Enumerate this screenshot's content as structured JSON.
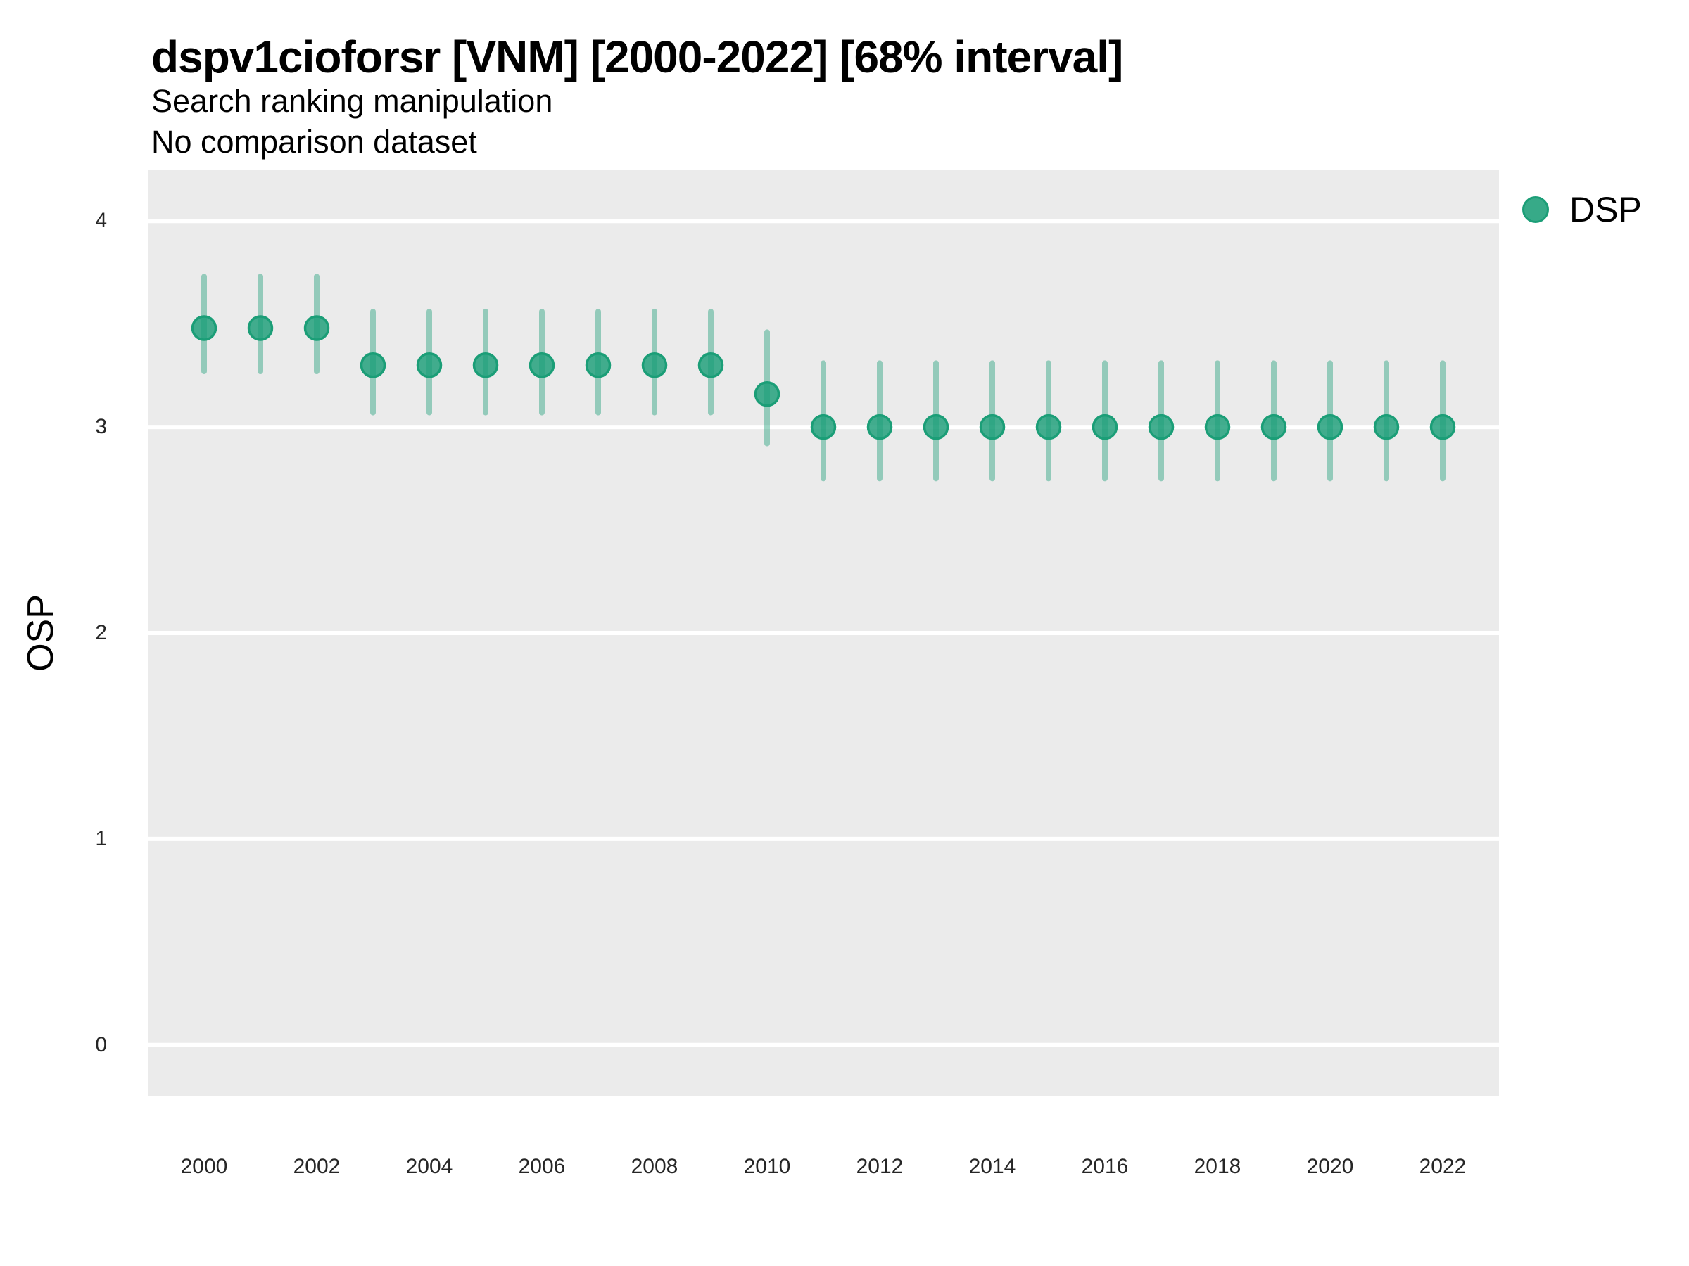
{
  "header": {
    "title": "dspv1cioforsr [VNM] [2000-2022] [68% interval]",
    "subtitle": "Search ranking manipulation",
    "note": "No comparison dataset"
  },
  "axes": {
    "y_title": "OSP"
  },
  "legend": {
    "label": "DSP"
  },
  "chart_data": {
    "type": "scatter",
    "variant": "pointrange-interval",
    "title": "dspv1cioforsr [VNM] [2000-2022] [68% interval]",
    "subtitle": "Search ranking manipulation",
    "note": "No comparison dataset",
    "xlabel": "",
    "ylabel": "OSP",
    "interval": "68%",
    "grid": "major-y, thick white lines on grey panel",
    "legend_position": "top-right-outside",
    "panel_bg": "#EBEBEB",
    "grid_color": "#FFFFFF",
    "x_domain": [
      1999,
      2023
    ],
    "y_domain": [
      -0.25,
      4.25
    ],
    "x_ticks": [
      2000,
      2002,
      2004,
      2006,
      2008,
      2010,
      2012,
      2014,
      2016,
      2018,
      2020,
      2022
    ],
    "y_ticks": [
      0,
      1,
      2,
      3,
      4
    ],
    "series": [
      {
        "name": "DSP",
        "color": "#1B9E77",
        "points": [
          {
            "x": 2000,
            "y": 3.48,
            "lo": 3.27,
            "hi": 3.73
          },
          {
            "x": 2001,
            "y": 3.48,
            "lo": 3.27,
            "hi": 3.73
          },
          {
            "x": 2002,
            "y": 3.48,
            "lo": 3.27,
            "hi": 3.73
          },
          {
            "x": 2003,
            "y": 3.3,
            "lo": 3.07,
            "hi": 3.56
          },
          {
            "x": 2004,
            "y": 3.3,
            "lo": 3.07,
            "hi": 3.56
          },
          {
            "x": 2005,
            "y": 3.3,
            "lo": 3.07,
            "hi": 3.56
          },
          {
            "x": 2006,
            "y": 3.3,
            "lo": 3.07,
            "hi": 3.56
          },
          {
            "x": 2007,
            "y": 3.3,
            "lo": 3.07,
            "hi": 3.56
          },
          {
            "x": 2008,
            "y": 3.3,
            "lo": 3.07,
            "hi": 3.56
          },
          {
            "x": 2009,
            "y": 3.3,
            "lo": 3.07,
            "hi": 3.56
          },
          {
            "x": 2010,
            "y": 3.16,
            "lo": 2.92,
            "hi": 3.46
          },
          {
            "x": 2011,
            "y": 3.0,
            "lo": 2.75,
            "hi": 3.31
          },
          {
            "x": 2012,
            "y": 3.0,
            "lo": 2.75,
            "hi": 3.31
          },
          {
            "x": 2013,
            "y": 3.0,
            "lo": 2.75,
            "hi": 3.31
          },
          {
            "x": 2014,
            "y": 3.0,
            "lo": 2.75,
            "hi": 3.31
          },
          {
            "x": 2015,
            "y": 3.0,
            "lo": 2.75,
            "hi": 3.31
          },
          {
            "x": 2016,
            "y": 3.0,
            "lo": 2.75,
            "hi": 3.31
          },
          {
            "x": 2017,
            "y": 3.0,
            "lo": 2.75,
            "hi": 3.31
          },
          {
            "x": 2018,
            "y": 3.0,
            "lo": 2.75,
            "hi": 3.31
          },
          {
            "x": 2019,
            "y": 3.0,
            "lo": 2.75,
            "hi": 3.31
          },
          {
            "x": 2020,
            "y": 3.0,
            "lo": 2.75,
            "hi": 3.31
          },
          {
            "x": 2021,
            "y": 3.0,
            "lo": 2.75,
            "hi": 3.31
          },
          {
            "x": 2022,
            "y": 3.0,
            "lo": 2.75,
            "hi": 3.31
          }
        ]
      }
    ]
  }
}
